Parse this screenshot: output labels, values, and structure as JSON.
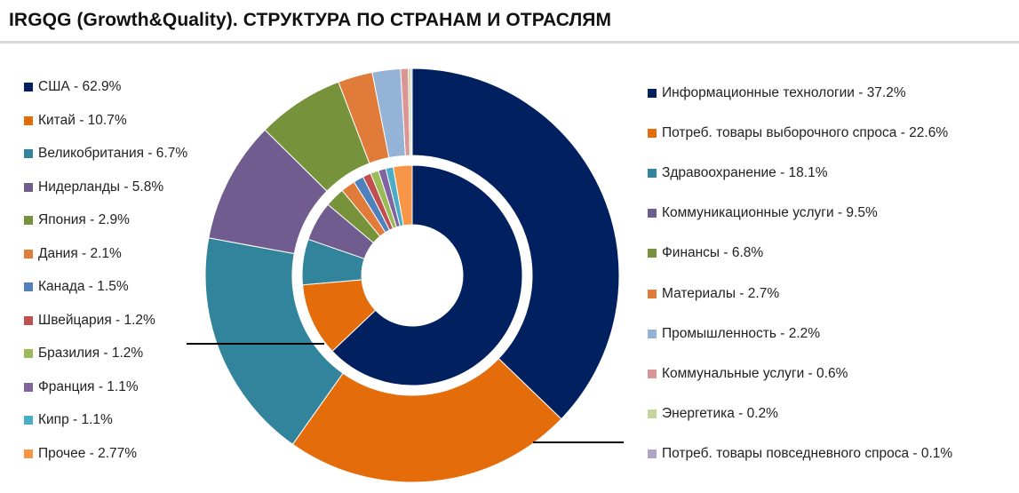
{
  "title": "IRGQG (Growth&Quality). СТРУКТУРА ПО СТРАНАМ И ОТРАСЛЯМ",
  "chart_data": [
    {
      "type": "pie",
      "variant": "donut-inner-ring",
      "name": "countries",
      "legend_position": "left",
      "categories": [
        "США",
        "Китай",
        "Великобритания",
        "Нидерланды",
        "Япония",
        "Дания",
        "Канада",
        "Швейцария",
        "Бразилия",
        "Франция",
        "Кипр",
        "Прочее"
      ],
      "values": [
        62.9,
        10.7,
        6.7,
        5.8,
        2.9,
        2.1,
        1.5,
        1.2,
        1.2,
        1.1,
        1.1,
        2.77
      ],
      "labels": [
        "США - 62.9%",
        "Китай - 10.7%",
        "Великобритания - 6.7%",
        "Нидерланды - 5.8%",
        "Япония - 2.9%",
        "Дания - 2.1%",
        "Канада - 1.5%",
        "Швейцария - 1.2%",
        "Бразилия - 1.2%",
        "Франция - 1.1%",
        "Кипр - 1.1%",
        "Прочее - 2.77%"
      ],
      "colors": [
        "#002060",
        "#e46c0a",
        "#31849b",
        "#705c8e",
        "#76933c",
        "#e07b39",
        "#4f81bd",
        "#c0504d",
        "#9bbb59",
        "#8064a2",
        "#4bacc6",
        "#f79646"
      ]
    },
    {
      "type": "pie",
      "variant": "donut-outer-ring",
      "name": "sectors",
      "legend_position": "right",
      "categories": [
        "Информационные технологии",
        "Потреб. товары выборочного спроса",
        "Здравоохранение",
        "Коммуникационные услуги",
        "Финансы",
        "Материалы",
        "Промышленность",
        "Коммунальные услуги",
        "Энергетика",
        "Потреб. товары повседневного спроса"
      ],
      "values": [
        37.2,
        22.6,
        18.1,
        9.5,
        6.8,
        2.7,
        2.2,
        0.6,
        0.2,
        0.1
      ],
      "labels": [
        "Информационные технологии - 37.2%",
        "Потреб. товары выборочного спроса - 22.6%",
        "Здравоохранение - 18.1%",
        "Коммуникационные услуги - 9.5%",
        "Финансы - 6.8%",
        "Материалы - 2.7%",
        "Промышленность - 2.2%",
        "Коммунальные услуги - 0.6%",
        "Энергетика - 0.2%",
        "Потреб. товары повседневного спроса - 0.1%"
      ],
      "colors": [
        "#002060",
        "#e46c0a",
        "#31849b",
        "#705c8e",
        "#76933c",
        "#e07b39",
        "#95b3d7",
        "#d99694",
        "#c3d69b",
        "#b3a2c7"
      ]
    }
  ]
}
